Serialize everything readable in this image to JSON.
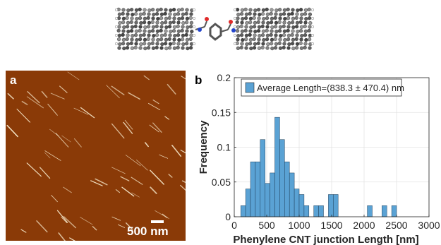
{
  "panel_a": {
    "label": "a",
    "scale_bar": "500 nm",
    "background_color": "#8a3a07",
    "feature_color": "#f5e6c8"
  },
  "panel_b": {
    "label": "b"
  },
  "chart_data": {
    "type": "bar",
    "xlabel": "Phenylene CNT junction Length [nm]",
    "ylabel": "Frequency",
    "xlim": [
      0,
      3000
    ],
    "ylim": [
      0,
      0.2
    ],
    "xticks": [
      "0",
      "500",
      "1000",
      "1500",
      "2000",
      "2500",
      "3000"
    ],
    "yticks": [
      "0",
      "0.05",
      "0.1",
      "0.15",
      "0.2"
    ],
    "grid": true,
    "legend_position": "top",
    "bar_color": "#5aa2d4",
    "series": [
      {
        "name": "Average Length=(838.3 ± 470.4) nm",
        "bin_edges": [
          100,
          175,
          250,
          325,
          400,
          475,
          550,
          625,
          700,
          775,
          850,
          925,
          1000,
          1075,
          1150,
          1225,
          1300,
          1375,
          1450,
          1525,
          1600,
          1675,
          1750,
          1825,
          1900,
          1975,
          2050,
          2125,
          2200,
          2275,
          2350,
          2425,
          2500
        ],
        "values": [
          0.016,
          0.04,
          0.079,
          0.079,
          0.111,
          0.048,
          0.063,
          0.143,
          0.111,
          0.079,
          0.063,
          0.04,
          0.032,
          0.016,
          0.0,
          0.016,
          0.016,
          0.0,
          0.032,
          0.032,
          0.0,
          0.0,
          0.0,
          0.0,
          0.0,
          0.0,
          0.016,
          0.0,
          0.0,
          0.016,
          0.0,
          0.016
        ]
      }
    ]
  }
}
